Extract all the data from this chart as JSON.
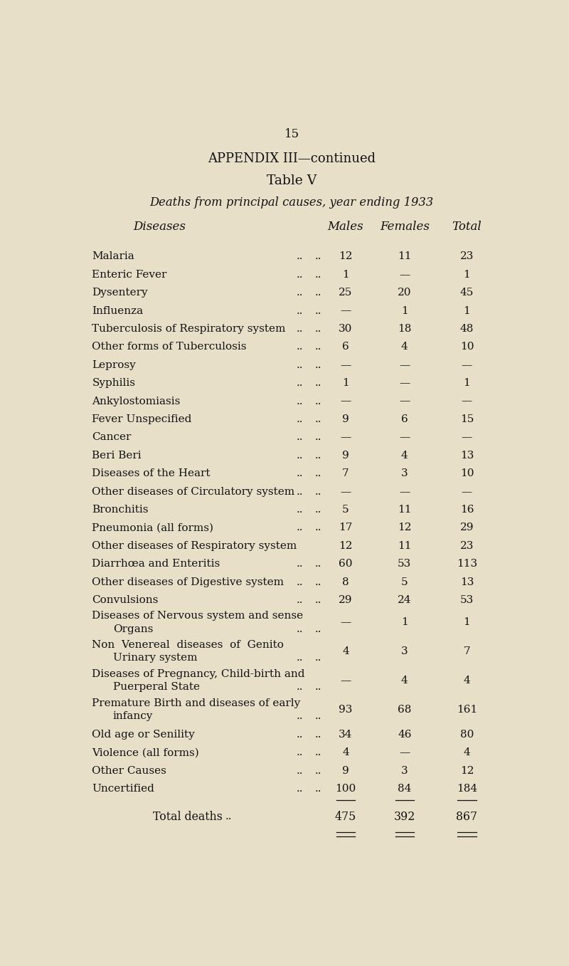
{
  "page_number": "15",
  "appendix_line": "APPENDIX III—continued",
  "table_title": "Table V",
  "subtitle": "Deaths from principal causes, year ending 1933",
  "bg_color": "#e8dfc8",
  "text_color": "#111111",
  "rows": [
    {
      "line1": "Malaria",
      "line2": "",
      "dots": "..",
      "males": "12",
      "females": "11",
      "total": "23"
    },
    {
      "line1": "Enteric Fever",
      "line2": "",
      "dots": "..",
      "males": "1",
      "females": "—",
      "total": "1"
    },
    {
      "line1": "Dysentery",
      "line2": "",
      "dots": "..",
      "males": "25",
      "females": "20",
      "total": "45"
    },
    {
      "line1": "Influenza",
      "line2": "",
      "dots": "..",
      "males": "—",
      "females": "1",
      "total": "1"
    },
    {
      "line1": "Tuberculosis of Respiratory system",
      "line2": "",
      "dots": "..",
      "males": "30",
      "females": "18",
      "total": "48"
    },
    {
      "line1": "Other forms of Tuberculosis",
      "line2": "",
      "dots": "..",
      "males": "6",
      "females": "4",
      "total": "10"
    },
    {
      "line1": "Leprosy",
      "line2": "",
      "dots": "..",
      "males": "—",
      "females": "—",
      "total": "—"
    },
    {
      "line1": "Syphilis",
      "line2": "",
      "dots": "..",
      "males": "1",
      "females": "—",
      "total": "1"
    },
    {
      "line1": "Ankylostomiasis",
      "line2": "",
      "dots": "..",
      "males": "—",
      "females": "—",
      "total": "—"
    },
    {
      "line1": "Fever Unspecified",
      "line2": "",
      "dots": "..",
      "males": "9",
      "females": "6",
      "total": "15"
    },
    {
      "line1": "Cancer",
      "line2": "",
      "dots": "..",
      "males": "—",
      "females": "—",
      "total": "—"
    },
    {
      "line1": "Beri Beri",
      "line2": "",
      "dots": "..",
      "males": "9",
      "females": "4",
      "total": "13"
    },
    {
      "line1": "Diseases of the Heart",
      "line2": "",
      "dots": "..",
      "males": "7",
      "females": "3",
      "total": "10"
    },
    {
      "line1": "Other diseases of Circulatory system",
      "line2": "",
      "dots": "..",
      "males": "—",
      "females": "—",
      "total": "—"
    },
    {
      "line1": "Bronchitis",
      "line2": "",
      "dots": "..",
      "males": "5",
      "females": "11",
      "total": "16"
    },
    {
      "line1": "Pneumonia (all forms)",
      "line2": "",
      "dots": "..",
      "males": "17",
      "females": "12",
      "total": "29"
    },
    {
      "line1": "Other diseases of Respiratory system",
      "line2": "",
      "dots": "",
      "males": "12",
      "females": "11",
      "total": "23"
    },
    {
      "line1": "Diarrhœa and Enteritis",
      "line2": "",
      "dots": "..",
      "males": "60",
      "females": "53",
      "total": "113"
    },
    {
      "line1": "Other diseases of Digestive system",
      "line2": "",
      "dots": "..",
      "males": "8",
      "females": "5",
      "total": "13"
    },
    {
      "line1": "Convulsions",
      "line2": "",
      "dots": "..",
      "males": "29",
      "females": "24",
      "total": "53"
    },
    {
      "line1": "Diseases of Nervous system and sense",
      "line2": "Organs",
      "dots": "..",
      "males": "—",
      "females": "1",
      "total": "1"
    },
    {
      "line1": "Non  Venereal  diseases  of  Genito",
      "line2": "Urinary system",
      "dots": "..",
      "males": "4",
      "females": "3",
      "total": "7"
    },
    {
      "line1": "Diseases of Pregnancy, Child-birth and",
      "line2": "Puerperal State",
      "dots": "..",
      "males": "—",
      "females": "4",
      "total": "4"
    },
    {
      "line1": "Premature Birth and diseases of early",
      "line2": "infancy",
      "dots": "..",
      "males": "93",
      "females": "68",
      "total": "161"
    },
    {
      "line1": "Old age or Senility",
      "line2": "",
      "dots": "..",
      "males": "34",
      "females": "46",
      "total": "80"
    },
    {
      "line1": "Violence (all forms)",
      "line2": "",
      "dots": "..",
      "males": "4",
      "females": "—",
      "total": "4"
    },
    {
      "line1": "Other Causes",
      "line2": "",
      "dots": "..",
      "males": "9",
      "females": "3",
      "total": "12"
    },
    {
      "line1": "Uncertified",
      "line2": "",
      "dots": "..",
      "males": "100",
      "females": "84",
      "total": "184"
    }
  ],
  "total_label": "Total deaths",
  "total_dots": "..",
  "total_males": "475",
  "total_females": "392",
  "total_total": "867"
}
